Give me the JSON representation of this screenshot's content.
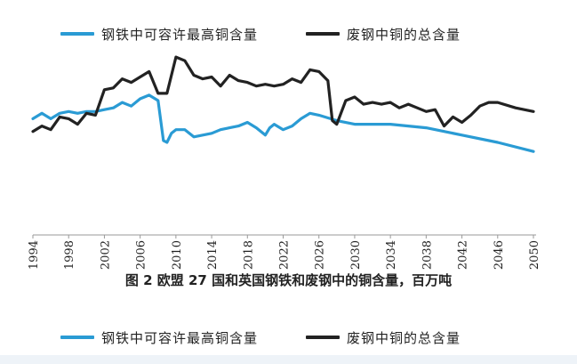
{
  "chart_data": {
    "type": "line",
    "title": "",
    "caption": "图 2 欧盟 27 国和英国钢铁和废钢中的铜含量，百万吨",
    "xlabel": "",
    "ylabel": "",
    "x_range": [
      1994,
      2050
    ],
    "y_range": [
      0,
      10
    ],
    "x_ticks": [
      "1994",
      "1998",
      "2002",
      "2006",
      "2010",
      "2014",
      "2018",
      "2022",
      "2026",
      "2030",
      "2034",
      "2038",
      "2042",
      "2046",
      "2050"
    ],
    "grid": false,
    "legend_position": "top and bottom",
    "series": [
      {
        "name": "钢铁中可容许最高铜含量",
        "color": "#2a9bd4",
        "points": [
          [
            1994,
            6.4
          ],
          [
            1995,
            6.7
          ],
          [
            1996,
            6.4
          ],
          [
            1997,
            6.7
          ],
          [
            1998,
            6.8
          ],
          [
            1999,
            6.7
          ],
          [
            2000,
            6.8
          ],
          [
            2001,
            6.8
          ],
          [
            2002,
            6.9
          ],
          [
            2003,
            7.0
          ],
          [
            2004,
            7.3
          ],
          [
            2005,
            7.1
          ],
          [
            2006,
            7.5
          ],
          [
            2007,
            7.7
          ],
          [
            2008,
            7.4
          ],
          [
            2008.6,
            5.2
          ],
          [
            2009,
            5.1
          ],
          [
            2009.5,
            5.6
          ],
          [
            2010,
            5.8
          ],
          [
            2011,
            5.8
          ],
          [
            2012,
            5.4
          ],
          [
            2013,
            5.5
          ],
          [
            2014,
            5.6
          ],
          [
            2015,
            5.8
          ],
          [
            2016,
            5.9
          ],
          [
            2017,
            6.0
          ],
          [
            2018,
            6.2
          ],
          [
            2019,
            5.9
          ],
          [
            2020,
            5.5
          ],
          [
            2020.5,
            5.9
          ],
          [
            2021,
            6.1
          ],
          [
            2022,
            5.8
          ],
          [
            2023,
            6.0
          ],
          [
            2024,
            6.4
          ],
          [
            2025,
            6.7
          ],
          [
            2026,
            6.6
          ],
          [
            2028,
            6.3
          ],
          [
            2030,
            6.1
          ],
          [
            2034,
            6.1
          ],
          [
            2038,
            5.9
          ],
          [
            2040,
            5.7
          ],
          [
            2042,
            5.5
          ],
          [
            2046,
            5.1
          ],
          [
            2050,
            4.6
          ]
        ]
      },
      {
        "name": "废钢中铜的总含量",
        "color": "#222222",
        "points": [
          [
            1994,
            5.7
          ],
          [
            1995,
            6.0
          ],
          [
            1996,
            5.8
          ],
          [
            1997,
            6.5
          ],
          [
            1998,
            6.4
          ],
          [
            1999,
            6.1
          ],
          [
            2000,
            6.7
          ],
          [
            2001,
            6.6
          ],
          [
            2002,
            8.0
          ],
          [
            2003,
            8.1
          ],
          [
            2004,
            8.6
          ],
          [
            2005,
            8.4
          ],
          [
            2006,
            8.7
          ],
          [
            2007,
            9.0
          ],
          [
            2008,
            7.8
          ],
          [
            2009,
            7.8
          ],
          [
            2010,
            9.8
          ],
          [
            2011,
            9.6
          ],
          [
            2012,
            8.8
          ],
          [
            2013,
            8.6
          ],
          [
            2014,
            8.7
          ],
          [
            2015,
            8.2
          ],
          [
            2016,
            8.8
          ],
          [
            2017,
            8.5
          ],
          [
            2018,
            8.4
          ],
          [
            2019,
            8.2
          ],
          [
            2020,
            8.3
          ],
          [
            2021,
            8.2
          ],
          [
            2022,
            8.3
          ],
          [
            2023,
            8.6
          ],
          [
            2024,
            8.4
          ],
          [
            2025,
            9.1
          ],
          [
            2026,
            9.0
          ],
          [
            2027,
            8.5
          ],
          [
            2027.5,
            6.3
          ],
          [
            2028,
            6.1
          ],
          [
            2029,
            7.4
          ],
          [
            2030,
            7.6
          ],
          [
            2031,
            7.2
          ],
          [
            2032,
            7.3
          ],
          [
            2033,
            7.2
          ],
          [
            2034,
            7.3
          ],
          [
            2035,
            7.0
          ],
          [
            2036,
            7.2
          ],
          [
            2037,
            7.0
          ],
          [
            2038,
            6.8
          ],
          [
            2039,
            6.9
          ],
          [
            2040,
            6.0
          ],
          [
            2041,
            6.5
          ],
          [
            2042,
            6.2
          ],
          [
            2043,
            6.6
          ],
          [
            2044,
            7.1
          ],
          [
            2045,
            7.3
          ],
          [
            2046,
            7.3
          ],
          [
            2048,
            7.0
          ],
          [
            2050,
            6.8
          ]
        ]
      }
    ]
  }
}
